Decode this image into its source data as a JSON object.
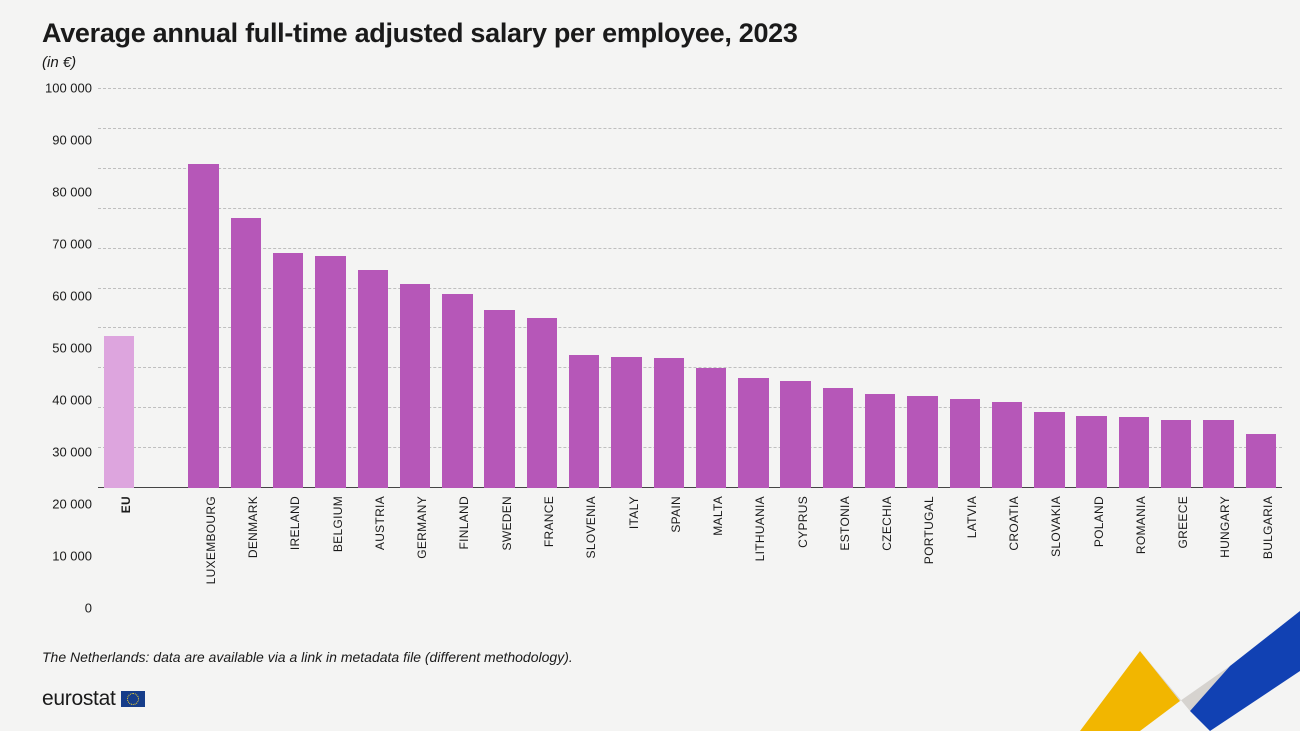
{
  "title": "Average annual full-time adjusted salary per employee, 2023",
  "subtitle": "(in €)",
  "footnote": "The Netherlands: data are available via a link in metadata file (different methodology).",
  "logo_text": "eurostat",
  "chart": {
    "type": "bar",
    "ylim": [
      0,
      100000
    ],
    "ytick_step": 10000,
    "yticks": [
      "0",
      "10 000",
      "20 000",
      "30 000",
      "40 000",
      "50 000",
      "60 000",
      "70 000",
      "80 000",
      "90 000",
      "100 000"
    ],
    "background_color": "#f4f4f3",
    "grid_color": "#bfbfbf",
    "axis_color": "#444444",
    "bar_color": "#b657b8",
    "eu_bar_color": "#dda5de",
    "label_fontsize": 12,
    "tick_fontsize": 13,
    "title_fontsize": 27,
    "series": [
      {
        "label": "EU",
        "value": 37900,
        "highlight": true,
        "bold": true
      },
      {
        "label": "",
        "value": null,
        "gap": true
      },
      {
        "label": "LUXEMBOURG",
        "value": 81100
      },
      {
        "label": "DENMARK",
        "value": 67600
      },
      {
        "label": "IRELAND",
        "value": 58700
      },
      {
        "label": "BELGIUM",
        "value": 57989
      },
      {
        "label": "AUSTRIA",
        "value": 54600
      },
      {
        "label": "GERMANY",
        "value": 50900
      },
      {
        "label": "FINLAND",
        "value": 48400
      },
      {
        "label": "SWEDEN",
        "value": 44600
      },
      {
        "label": "FRANCE",
        "value": 42600
      },
      {
        "label": "SLOVENIA",
        "value": 33130
      },
      {
        "label": "ITALY",
        "value": 32749
      },
      {
        "label": "SPAIN",
        "value": 32500
      },
      {
        "label": "MALTA",
        "value": 30100
      },
      {
        "label": "LITHUANIA",
        "value": 27400
      },
      {
        "label": "CYPRUS",
        "value": 26700
      },
      {
        "label": "ESTONIA",
        "value": 25100
      },
      {
        "label": "CZECHIA",
        "value": 23500
      },
      {
        "label": "PORTUGAL",
        "value": 22900
      },
      {
        "label": "LATVIA",
        "value": 22300
      },
      {
        "label": "CROATIA",
        "value": 21500
      },
      {
        "label": "SLOVAKIA",
        "value": 19100
      },
      {
        "label": "POLAND",
        "value": 18100
      },
      {
        "label": "ROMANIA",
        "value": 17800
      },
      {
        "label": "GREECE",
        "value": 17000
      },
      {
        "label": "HUNGARY",
        "value": 16900
      },
      {
        "label": "BULGARIA",
        "value": 13500
      }
    ]
  },
  "swoosh_colors": {
    "gold": "#f2b600",
    "grey": "#d6d3cf",
    "blue": "#1141b3"
  }
}
